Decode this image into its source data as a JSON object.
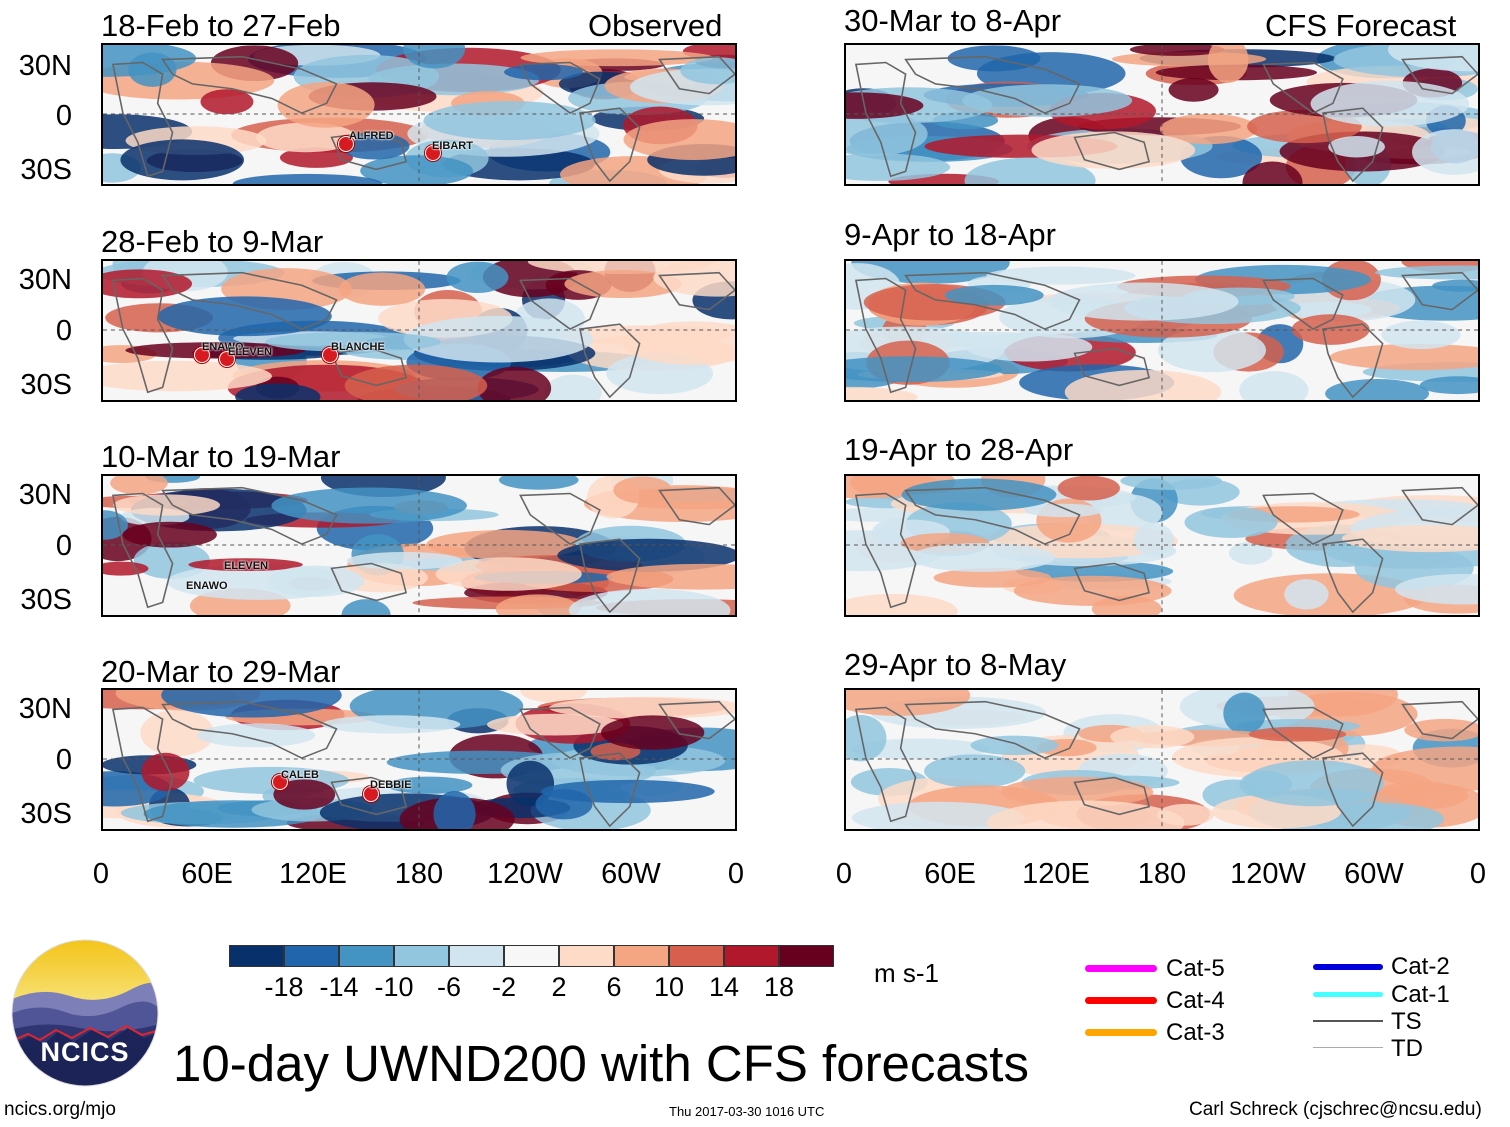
{
  "panels": {
    "left_header": "Observed",
    "right_header": "CFS Forecast",
    "observed": [
      {
        "title": "18-Feb to 27-Feb"
      },
      {
        "title": "28-Feb to 9-Mar"
      },
      {
        "title": "10-Mar to 19-Mar"
      },
      {
        "title": "20-Mar to 29-Mar"
      }
    ],
    "forecast": [
      {
        "title": "30-Mar to 8-Apr"
      },
      {
        "title": "9-Apr to 18-Apr"
      },
      {
        "title": "19-Apr to 28-Apr"
      },
      {
        "title": "29-Apr to 8-May"
      }
    ]
  },
  "axes": {
    "lat_labels": [
      "30N",
      "0",
      "30S"
    ],
    "lon_labels": [
      "0",
      "60E",
      "120E",
      "180",
      "120W",
      "60W",
      "0"
    ]
  },
  "storms": {
    "p1": [
      "ALFRED",
      "EIBART"
    ],
    "p2": [
      "ENAWO",
      "ELEVEN",
      "BLANCHE"
    ],
    "p3": [
      "ELEVEN",
      "ENAWO"
    ],
    "p4": [
      "CALEB",
      "DEBBIE"
    ]
  },
  "colorbar": {
    "colors": [
      "#08306b",
      "#2166ac",
      "#4393c3",
      "#92c5de",
      "#d1e5f0",
      "#f7f7f7",
      "#fddbc7",
      "#f4a582",
      "#d6604d",
      "#b2182b",
      "#67001f"
    ],
    "ticks": [
      "-18",
      "-14",
      "-10",
      "-6",
      "-2",
      "2",
      "6",
      "10",
      "14",
      "18"
    ],
    "units": "m s-1"
  },
  "legend": {
    "left": [
      {
        "label": "Cat-5",
        "color": "#ff00ff"
      },
      {
        "label": "Cat-4",
        "color": "#ff0000"
      },
      {
        "label": "Cat-3",
        "color": "#ffa500"
      }
    ],
    "right": [
      {
        "label": "Cat-2",
        "color": "#0000dd"
      },
      {
        "label": "Cat-1",
        "color": "#44ffff"
      },
      {
        "label": "TS",
        "color": "#555555"
      },
      {
        "label": "TD",
        "color": "#aaaaaa"
      }
    ]
  },
  "footer": {
    "logo_text": "NCICS",
    "title": "10-day UWND200 with CFS forecasts",
    "url": "ncics.org/mjo",
    "timestamp": "Thu 2017-03-30 1016 UTC",
    "credit": "Carl Schreck (cjschrec@ncsu.edu)"
  }
}
